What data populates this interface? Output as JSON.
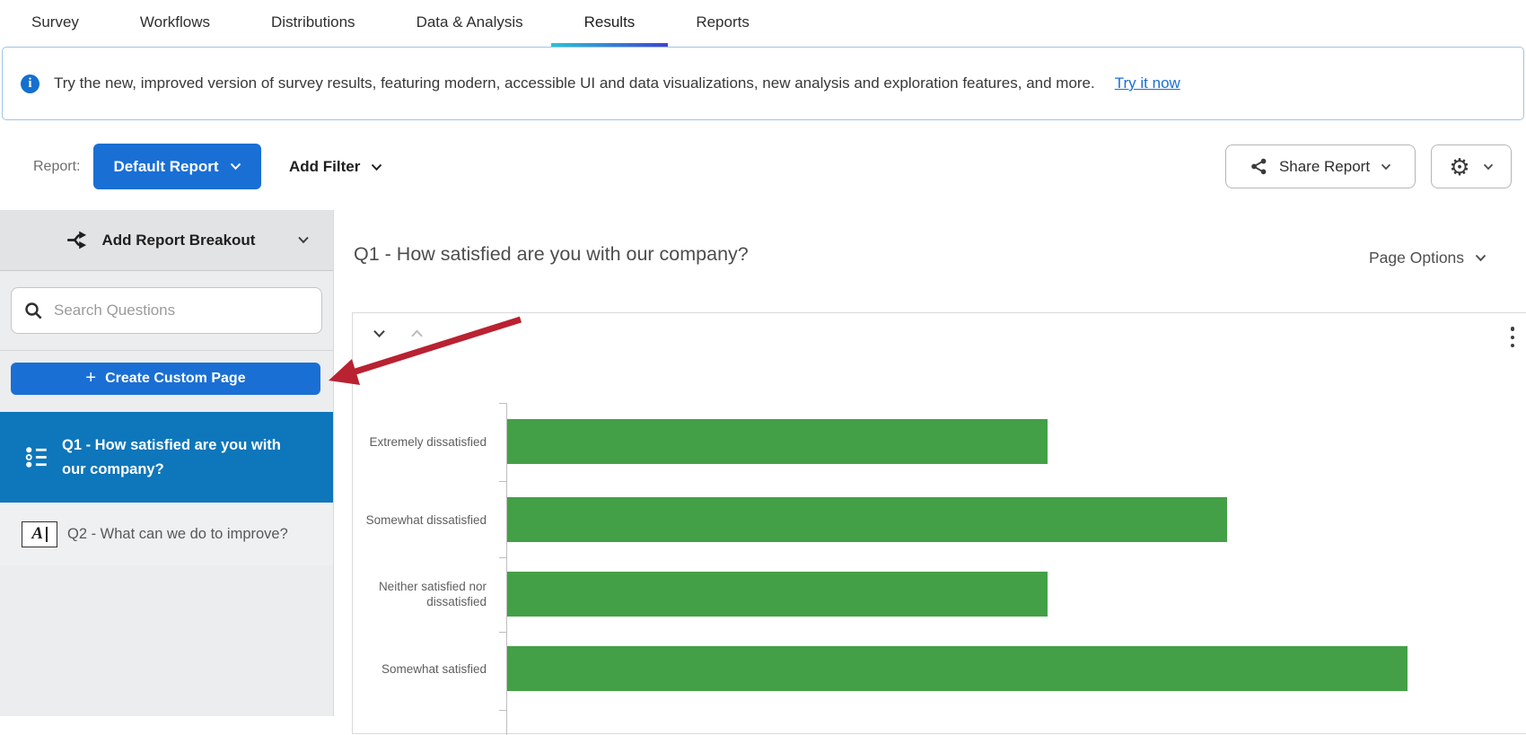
{
  "colors": {
    "accent_blue": "#1a6fd4",
    "selected_item_blue": "#0e76ba",
    "bar_green": "#43a047",
    "annotation_arrow_red": "#b92231",
    "tab_underline_gradient": [
      "#27c4d5",
      "#4340d6"
    ],
    "banner_border_blue": "#9dc5e6"
  },
  "nav": {
    "tabs": [
      {
        "label": "Survey",
        "active": false
      },
      {
        "label": "Workflows",
        "active": false
      },
      {
        "label": "Distributions",
        "active": false
      },
      {
        "label": "Data & Analysis",
        "active": false
      },
      {
        "label": "Results",
        "active": true
      },
      {
        "label": "Reports",
        "active": false
      }
    ]
  },
  "banner": {
    "message": "Try the new, improved version of survey results, featuring modern, accessible UI and data visualizations, new analysis and exploration features, and more.",
    "link_label": "Try it now"
  },
  "toolbar": {
    "report_label": "Report:",
    "report_button_label": "Default Report",
    "add_filter_label": "Add Filter",
    "share_button_label": "Share Report",
    "gear_glyph": "⚙"
  },
  "sidebar": {
    "breakout_label": "Add Report Breakout",
    "search_placeholder": "Search Questions",
    "create_page_label": "Create Custom Page",
    "items": [
      {
        "label": "Q1 - How satisfied are you with our company?",
        "icon": "multiple-choice-icon",
        "selected": true
      },
      {
        "label": "Q2 - What can we do to improve?",
        "icon": "text-entry-icon",
        "selected": false
      }
    ]
  },
  "main": {
    "page_title": "Q1 - How satisfied are you with our company?",
    "page_options_label": "Page Options"
  },
  "chart_data": {
    "type": "bar",
    "orientation": "horizontal",
    "title": "Q1 - How satisfied are you with our company?",
    "categories": [
      "Extremely dissatisfied",
      "Somewhat dissatisfied",
      "Neither satisfied nor dissatisfied",
      "Somewhat satisfied"
    ],
    "values": [
      3,
      4,
      3,
      5
    ],
    "bar_color": "#43a047",
    "xlabel": "",
    "ylabel": "",
    "grid": false,
    "legend": false,
    "x_axis_labels_visible": false
  }
}
